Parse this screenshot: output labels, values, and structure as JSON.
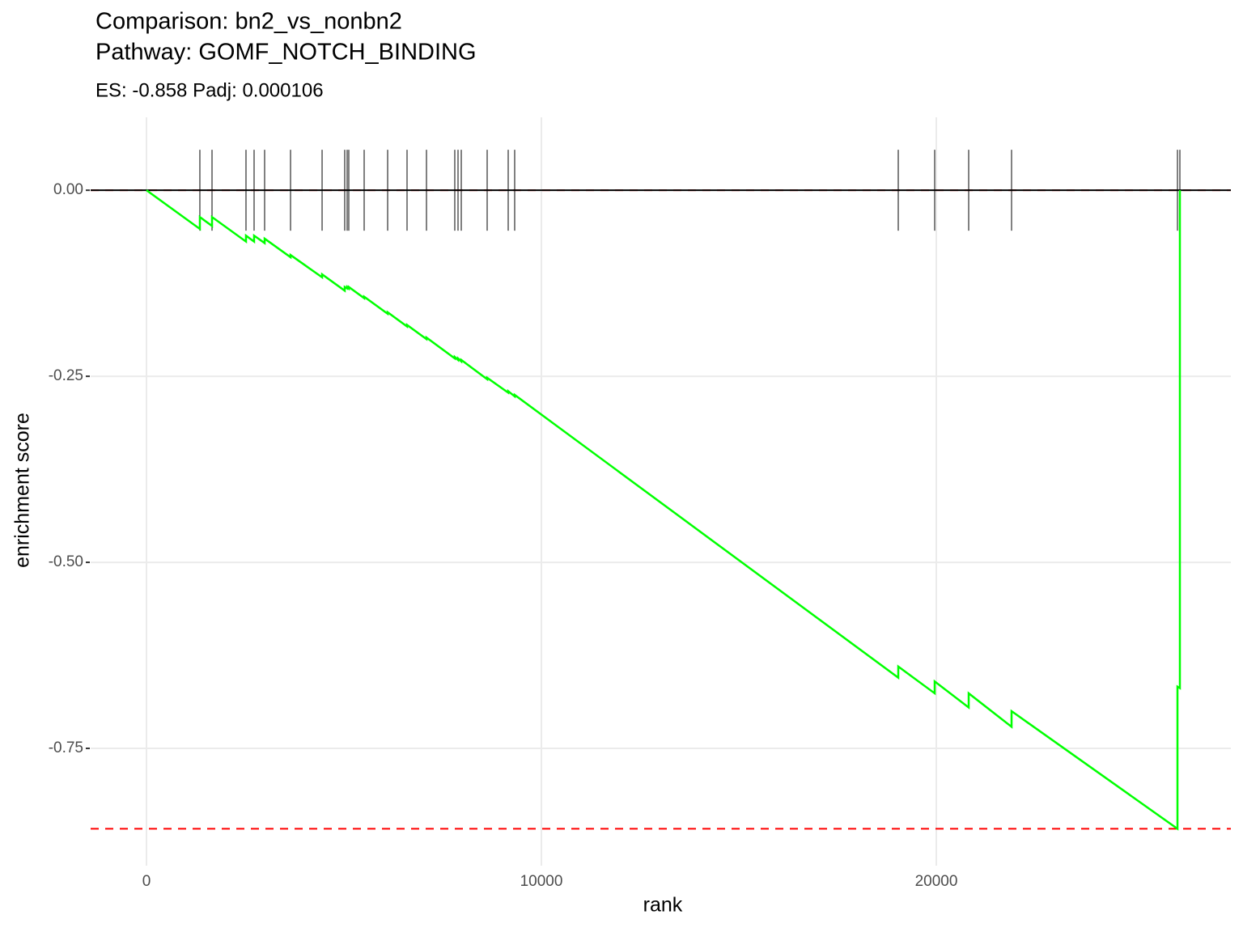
{
  "chart_data": {
    "type": "line",
    "title": [
      "Comparison: bn2_vs_nonbn2",
      "Pathway: GOMF_NOTCH_BINDING"
    ],
    "subtitle": "ES: -0.858 Padj: 0.000106",
    "x_label": "rank",
    "y_label": "enrichment score",
    "color": "#00ff00",
    "x": [
      0,
      1352,
      1352,
      1660,
      1660,
      2520,
      2520,
      2725,
      2725,
      2992,
      2992,
      3648,
      3648,
      4447,
      4447,
      5020,
      5020,
      5082,
      5082,
      5123,
      5123,
      5512,
      5512,
      6107,
      6107,
      6598,
      6598,
      7090,
      7090,
      7807,
      7807,
      7889,
      7889,
      7971,
      7971,
      8627,
      8627,
      9160,
      9160,
      9324,
      9324,
      19037,
      19037,
      19959,
      19959,
      20820,
      20820,
      21906,
      21906,
      26107,
      26107,
      26168,
      26168
    ],
    "values": [
      0,
      -0.052,
      -0.036,
      -0.048,
      -0.036,
      -0.069,
      -0.061,
      -0.069,
      -0.061,
      -0.071,
      -0.065,
      -0.09,
      -0.087,
      -0.117,
      -0.113,
      -0.135,
      -0.13,
      -0.132,
      -0.13,
      -0.132,
      -0.13,
      -0.145,
      -0.143,
      -0.166,
      -0.164,
      -0.183,
      -0.181,
      -0.2,
      -0.198,
      -0.226,
      -0.224,
      -0.228,
      -0.226,
      -0.23,
      -0.228,
      -0.254,
      -0.252,
      -0.272,
      -0.27,
      -0.277,
      -0.275,
      -0.655,
      -0.64,
      -0.676,
      -0.66,
      -0.695,
      -0.676,
      -0.721,
      -0.7,
      -0.858,
      -0.667,
      -0.669,
      0
    ],
    "hits": [
      1352,
      1660,
      2520,
      2725,
      2992,
      3648,
      4447,
      5020,
      5082,
      5123,
      5512,
      6107,
      6598,
      7090,
      7807,
      7889,
      7971,
      8627,
      9160,
      9324,
      19037,
      19959,
      20820,
      21906,
      26107,
      26168
    ],
    "hlines": [
      {
        "value": -0.858,
        "color": "#ff0000",
        "dash": true
      },
      {
        "value": 0,
        "color": "#ff0000",
        "dash": true
      },
      {
        "value": 0,
        "color": "#000000",
        "dash": false
      }
    ],
    "xlim": [
      -1414,
      27459
    ],
    "ylim": [
      -0.9076,
      0.098
    ],
    "xticks": [
      0,
      10000,
      20000
    ],
    "yticks": [
      {
        "value": 0,
        "label": "0.00"
      },
      {
        "value": -0.25,
        "label": "-0.25"
      },
      {
        "value": -0.5,
        "label": "-0.50"
      },
      {
        "value": -0.75,
        "label": "-0.75"
      }
    ],
    "grid": true
  }
}
